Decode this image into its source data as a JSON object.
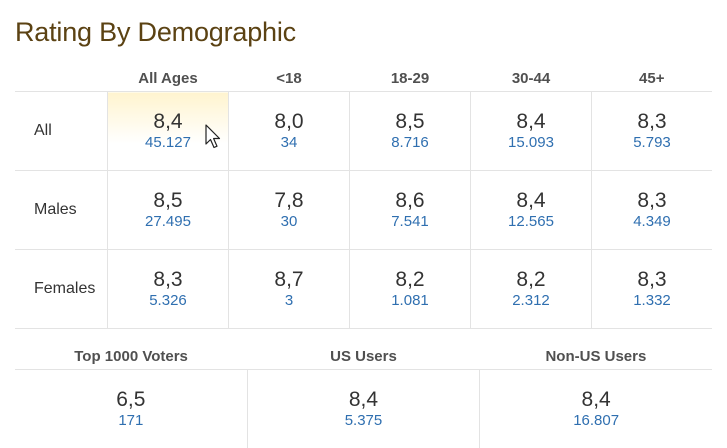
{
  "title": "Rating By Demographic",
  "columns": [
    "All Ages",
    "<18",
    "18-29",
    "30-44",
    "45+"
  ],
  "rows": [
    {
      "label": "All",
      "cells": [
        {
          "rating": "8,4",
          "votes": "45.127"
        },
        {
          "rating": "8,0",
          "votes": "34"
        },
        {
          "rating": "8,5",
          "votes": "8.716"
        },
        {
          "rating": "8,4",
          "votes": "15.093"
        },
        {
          "rating": "8,3",
          "votes": "5.793"
        }
      ]
    },
    {
      "label": "Males",
      "cells": [
        {
          "rating": "8,5",
          "votes": "27.495"
        },
        {
          "rating": "7,8",
          "votes": "30"
        },
        {
          "rating": "8,6",
          "votes": "7.541"
        },
        {
          "rating": "8,4",
          "votes": "12.565"
        },
        {
          "rating": "8,3",
          "votes": "4.349"
        }
      ]
    },
    {
      "label": "Females",
      "cells": [
        {
          "rating": "8,3",
          "votes": "5.326"
        },
        {
          "rating": "8,7",
          "votes": "3"
        },
        {
          "rating": "8,2",
          "votes": "1.081"
        },
        {
          "rating": "8,2",
          "votes": "2.312"
        },
        {
          "rating": "8,3",
          "votes": "1.332"
        }
      ]
    }
  ],
  "bottom": {
    "headers": [
      "Top 1000 Voters",
      "US Users",
      "Non-US Users"
    ],
    "cells": [
      {
        "rating": "6,5",
        "votes": "171"
      },
      {
        "rating": "8,4",
        "votes": "5.375"
      },
      {
        "rating": "8,4",
        "votes": "16.807"
      }
    ]
  },
  "colors": {
    "title": "#5b4213",
    "votes_link": "#2f6fb0",
    "highlight": "#fff4cf",
    "border": "#e3e3e3"
  },
  "icons": {
    "cursor": "mouse-pointer-icon"
  }
}
